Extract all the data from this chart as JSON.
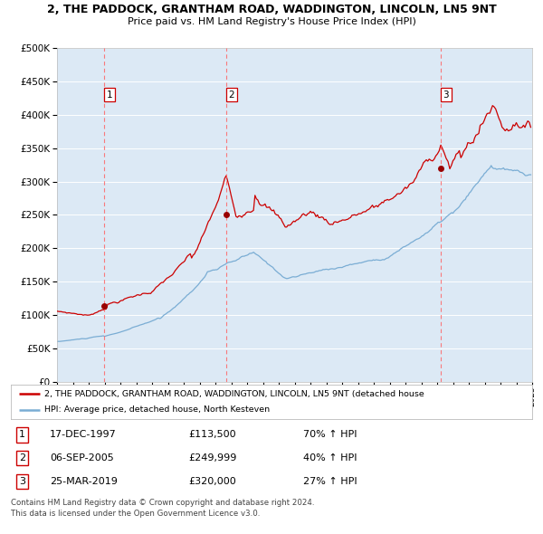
{
  "title_line1": "2, THE PADDOCK, GRANTHAM ROAD, WADDINGTON, LINCOLN, LN5 9NT",
  "title_line2": "Price paid vs. HM Land Registry's House Price Index (HPI)",
  "background_color": "#dce9f5",
  "grid_color": "#ffffff",
  "red_line_color": "#cc0000",
  "blue_line_color": "#7aadd4",
  "sale_marker_color": "#990000",
  "vline_color": "#ff6666",
  "sales": [
    {
      "date_num": 1997.96,
      "price": 113500,
      "label": "1",
      "date_str": "17-DEC-1997",
      "pct": "70% ↑ HPI"
    },
    {
      "date_num": 2005.68,
      "price": 249999,
      "label": "2",
      "date_str": "06-SEP-2005",
      "pct": "40% ↑ HPI"
    },
    {
      "date_num": 2019.23,
      "price": 320000,
      "label": "3",
      "date_str": "25-MAR-2019",
      "pct": "27% ↑ HPI"
    }
  ],
  "legend_property": "2, THE PADDOCK, GRANTHAM ROAD, WADDINGTON, LINCOLN, LN5 9NT (detached house",
  "legend_hpi": "HPI: Average price, detached house, North Kesteven",
  "footer_line1": "Contains HM Land Registry data © Crown copyright and database right 2024.",
  "footer_line2": "This data is licensed under the Open Government Licence v3.0.",
  "xmin": 1995,
  "xmax": 2025,
  "ymin": 0,
  "ymax": 500000,
  "yticks": [
    0,
    50000,
    100000,
    150000,
    200000,
    250000,
    300000,
    350000,
    400000,
    450000,
    500000
  ]
}
